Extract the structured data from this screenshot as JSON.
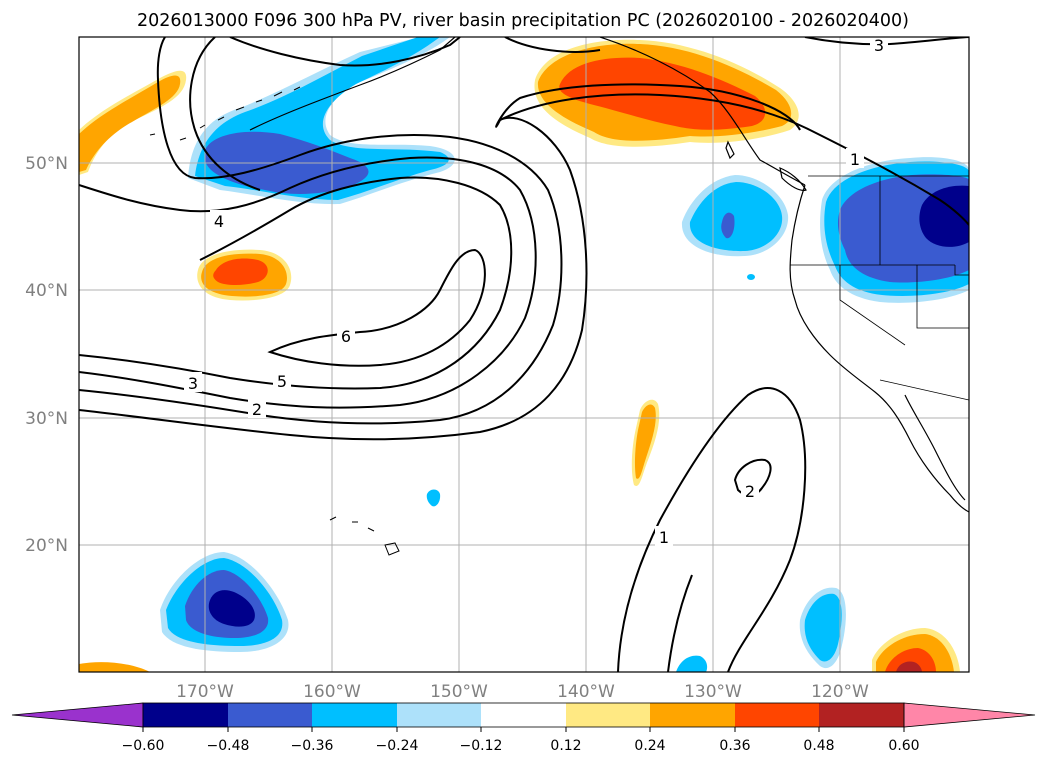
{
  "title": "2026013000 F096 300 hPa PV, river basin precipitation PC (2026020100 - 2026020400)",
  "axes": {
    "lat_labels": [
      "50°N",
      "40°N",
      "30°N",
      "20°N"
    ],
    "lon_labels": [
      "170°W",
      "160°W",
      "150°W",
      "140°W",
      "130°W",
      "120°W"
    ]
  },
  "colorbar": {
    "ticks": [
      "−0.60",
      "−0.48",
      "−0.36",
      "−0.24",
      "−0.12",
      "0.12",
      "0.24",
      "0.36",
      "0.48",
      "0.60"
    ],
    "under_color": "#9a32cd",
    "over_color": "#ff86a8",
    "colors": [
      "#00008b",
      "#3a5bd0",
      "#00bfff",
      "#ade1fa",
      "#ffffff",
      "#ffe983",
      "#ffa500",
      "#ff4500",
      "#b22222"
    ]
  },
  "contour_labels": {
    "c6": "6",
    "c5": "5",
    "c4": "4",
    "c3a": "3",
    "c3b": "3",
    "c2a": "2",
    "c2b": "2",
    "c1a": "1",
    "c1b": "1"
  }
}
